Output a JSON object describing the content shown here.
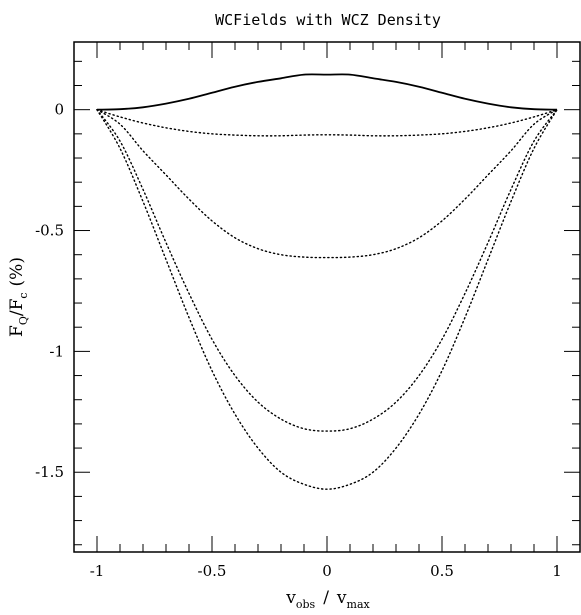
{
  "chart_data": {
    "type": "line",
    "title": "WCFields with WCZ Density",
    "xlabel": {
      "main1": "v",
      "sub1": "obs",
      "sep": "/",
      "main2": "v",
      "sub2": "max"
    },
    "ylabel": {
      "main1": "F",
      "sub1": "Q",
      "sep": "/",
      "main2": "F",
      "sub2": "c",
      "unit": "(%)"
    },
    "xlim": [
      -1.1,
      1.1
    ],
    "ylim": [
      -1.83,
      0.28
    ],
    "grid": false,
    "legend": "none",
    "x_ticks": [
      {
        "value": -1,
        "label": "-1"
      },
      {
        "value": -0.5,
        "label": "-0.5"
      },
      {
        "value": 0,
        "label": "0"
      },
      {
        "value": 0.5,
        "label": "0.5"
      },
      {
        "value": 1,
        "label": "1"
      }
    ],
    "y_ticks": [
      {
        "value": 0,
        "label": "0"
      },
      {
        "value": -0.5,
        "label": "-0.5"
      },
      {
        "value": -1,
        "label": "-1"
      },
      {
        "value": -1.5,
        "label": "-1.5"
      }
    ],
    "x": [
      -1,
      -0.9,
      -0.8,
      -0.7,
      -0.6,
      -0.5,
      -0.4,
      -0.3,
      -0.2,
      -0.1,
      0,
      0.1,
      0.2,
      0.3,
      0.4,
      0.5,
      0.6,
      0.7,
      0.8,
      0.9,
      1
    ],
    "series": [
      {
        "style": "solid",
        "values": [
          0,
          0.002,
          0.01,
          0.025,
          0.045,
          0.07,
          0.095,
          0.115,
          0.13,
          0.145,
          0.145,
          0.145,
          0.13,
          0.115,
          0.095,
          0.07,
          0.045,
          0.025,
          0.01,
          0.002,
          0
        ]
      },
      {
        "style": "dotted",
        "values": [
          0,
          -0.03,
          -0.055,
          -0.075,
          -0.09,
          -0.1,
          -0.105,
          -0.108,
          -0.108,
          -0.105,
          -0.104,
          -0.105,
          -0.108,
          -0.108,
          -0.105,
          -0.1,
          -0.09,
          -0.075,
          -0.055,
          -0.03,
          0
        ]
      },
      {
        "style": "dotted",
        "values": [
          0,
          -0.06,
          -0.17,
          -0.27,
          -0.37,
          -0.46,
          -0.53,
          -0.575,
          -0.6,
          -0.61,
          -0.612,
          -0.61,
          -0.6,
          -0.575,
          -0.53,
          -0.46,
          -0.37,
          -0.27,
          -0.17,
          -0.06,
          0
        ]
      },
      {
        "style": "dotted",
        "values": [
          0,
          -0.13,
          -0.33,
          -0.55,
          -0.76,
          -0.95,
          -1.1,
          -1.21,
          -1.28,
          -1.32,
          -1.33,
          -1.32,
          -1.28,
          -1.21,
          -1.1,
          -0.95,
          -0.76,
          -0.55,
          -0.33,
          -0.13,
          0
        ]
      },
      {
        "style": "dotted",
        "values": [
          0,
          -0.16,
          -0.38,
          -0.62,
          -0.86,
          -1.08,
          -1.26,
          -1.4,
          -1.5,
          -1.55,
          -1.57,
          -1.55,
          -1.5,
          -1.4,
          -1.26,
          -1.08,
          -0.86,
          -0.62,
          -0.38,
          -0.16,
          0
        ]
      }
    ]
  }
}
